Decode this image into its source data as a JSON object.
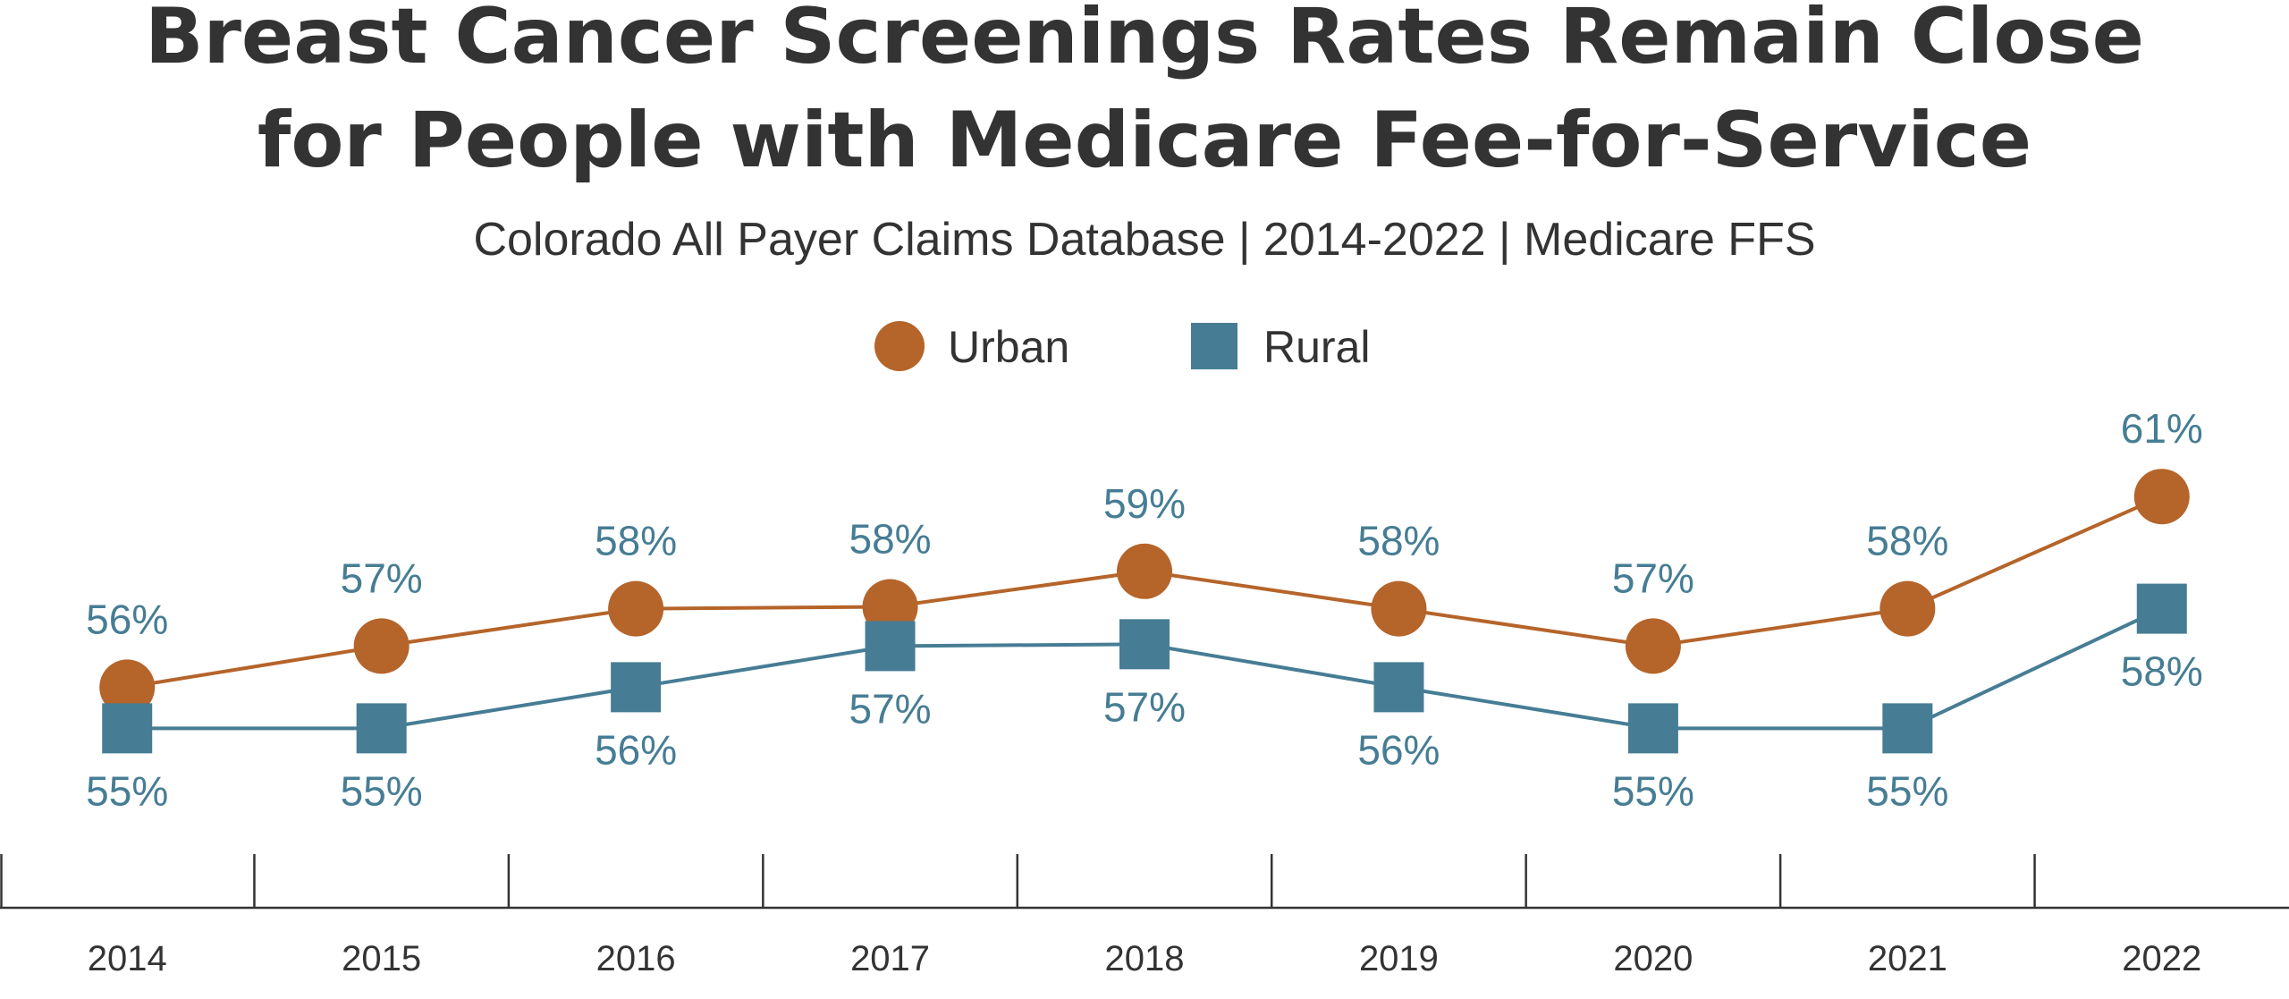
{
  "chart_data": {
    "type": "line",
    "title": "Breast Cancer Screenings Rates Remain Close for People with Medicare Fee-for-Service",
    "title_lines": [
      "Breast Cancer Screenings Rates Remain Close",
      "for People with Medicare Fee-for-Service"
    ],
    "subtitle": "Colorado All Payer Claims Database | 2014-2022 | Medicare FFS",
    "xlabel": "",
    "ylabel": "",
    "categories": [
      "2014",
      "2015",
      "2016",
      "2017",
      "2018",
      "2019",
      "2020",
      "2021",
      "2022"
    ],
    "ylim": [
      50,
      64
    ],
    "grid": false,
    "legend_position": "top-center",
    "series": [
      {
        "name": "Urban",
        "marker": "circle",
        "color": "#B5642A",
        "values": [
          55.9,
          57.0,
          58.0,
          58.05,
          59.0,
          58.0,
          57.0,
          58.0,
          61.0
        ],
        "labels": [
          "56%",
          "57%",
          "58%",
          "58%",
          "59%",
          "58%",
          "57%",
          "58%",
          "61%"
        ],
        "label_position": "above"
      },
      {
        "name": "Rural",
        "marker": "square",
        "color": "#467D94",
        "values": [
          54.8,
          54.8,
          55.9,
          57.0,
          57.05,
          55.9,
          54.8,
          54.8,
          58.0
        ],
        "labels": [
          "55%",
          "55%",
          "56%",
          "57%",
          "57%",
          "56%",
          "55%",
          "55%",
          "58%"
        ],
        "label_position": "below"
      }
    ]
  },
  "colors": {
    "text": "#333333",
    "data_label": "#467D94",
    "axis": "#333333"
  }
}
